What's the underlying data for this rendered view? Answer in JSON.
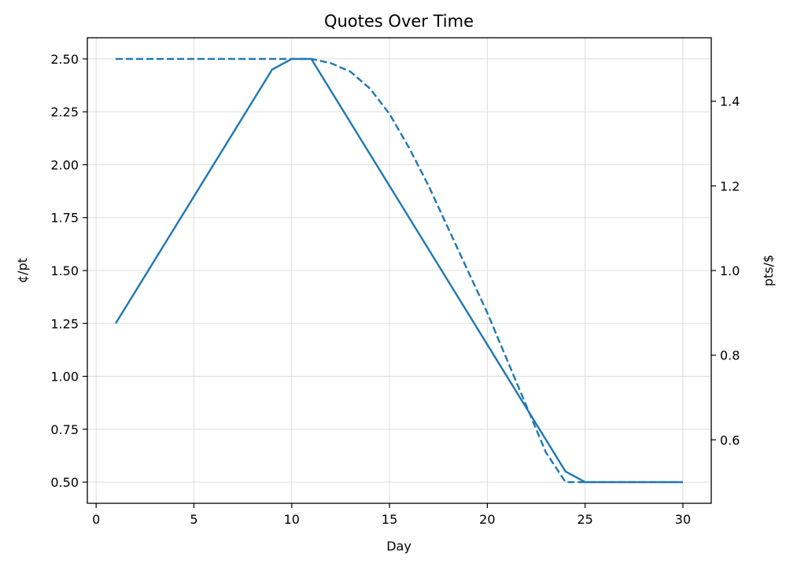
{
  "chart_data": {
    "type": "line",
    "title": "Quotes Over Time",
    "xlabel": "Day",
    "ylabel": "¢/pt",
    "y2label": "pts/$",
    "xlim": [
      -0.45,
      31.45
    ],
    "ylim": [
      0.4,
      2.6
    ],
    "y2lim": [
      0.45,
      1.55
    ],
    "x_ticks": [
      0,
      5,
      10,
      15,
      20,
      25,
      30
    ],
    "y_ticks": [
      0.5,
      0.75,
      1.0,
      1.25,
      1.5,
      1.75,
      2.0,
      2.25,
      2.5
    ],
    "y_tick_labels": [
      "0.50",
      "0.75",
      "1.00",
      "1.25",
      "1.50",
      "1.75",
      "2.00",
      "2.25",
      "2.50"
    ],
    "y2_ticks": [
      0.6,
      0.8,
      1.0,
      1.2,
      1.4
    ],
    "y2_tick_labels": [
      "0.6",
      "0.8",
      "1.0",
      "1.2",
      "1.4"
    ],
    "grid": true,
    "colors": {
      "series": "#1f77b4",
      "grid": "#dddddd",
      "axis": "#000000"
    },
    "series": [
      {
        "axis": "left",
        "style": "solid",
        "x": [
          1,
          9,
          10,
          11,
          24,
          25,
          30
        ],
        "values": [
          1.25,
          2.45,
          2.5,
          2.5,
          0.55,
          0.5,
          0.5
        ]
      },
      {
        "axis": "right",
        "style": "dashed",
        "x": [
          1,
          10,
          11,
          12,
          13,
          14,
          15,
          16,
          17,
          18,
          19,
          20,
          21,
          22,
          23,
          24,
          25,
          30
        ],
        "values": [
          1.5,
          1.5,
          1.5,
          1.49,
          1.47,
          1.43,
          1.37,
          1.29,
          1.2,
          1.1,
          1.0,
          0.9,
          0.79,
          0.68,
          0.57,
          0.5,
          0.5,
          0.5
        ]
      }
    ]
  }
}
